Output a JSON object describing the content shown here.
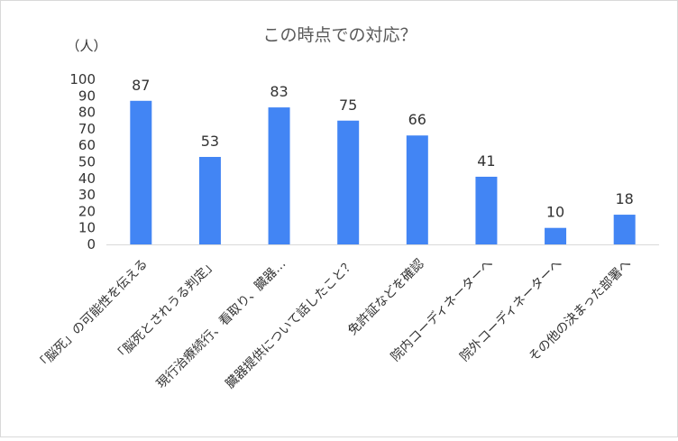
{
  "chart_data": {
    "type": "bar",
    "title": "この時点での対応？",
    "ylabel": "（人）",
    "xlabel": "",
    "ylim": [
      0,
      100
    ],
    "yticks": [
      0,
      10,
      20,
      30,
      40,
      50,
      60,
      70,
      80,
      90,
      100
    ],
    "grid": false,
    "legend": "none",
    "bar_color": "#4285f4",
    "categories": [
      "「脳死」の可能性を伝える",
      "「脳死とされうる判定」",
      "現行治療続行、看取り、臓器…",
      "臓器提供について話したこと？",
      "免許証などを確認",
      "院内コーディネーターへ",
      "院外コーディネーターへ",
      "その他の決まった部署へ"
    ],
    "values": [
      87,
      53,
      83,
      75,
      66,
      41,
      10,
      18
    ]
  }
}
